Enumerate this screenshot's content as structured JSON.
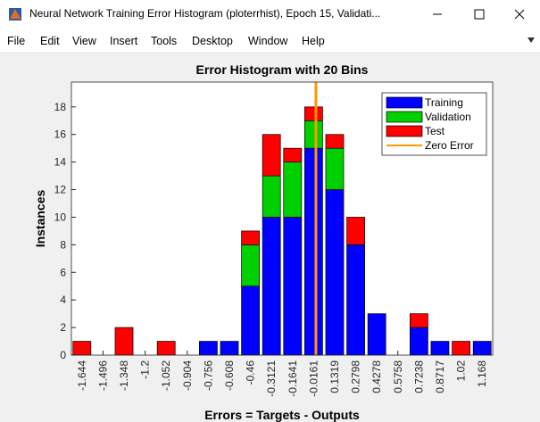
{
  "window_title": "Neural Network Training Error Histogram (ploterrhist), Epoch 15, Validati...",
  "menu": [
    "File",
    "Edit",
    "View",
    "Insert",
    "Tools",
    "Desktop",
    "Window",
    "Help"
  ],
  "chart_data": {
    "type": "histogram",
    "title": "Error Histogram with 20 Bins",
    "xlabel": "Errors = Targets - Outputs",
    "ylabel": "Instances",
    "x": [
      -1.644,
      -1.496,
      -1.348,
      -1.2,
      -1.052,
      -0.904,
      -0.756,
      -0.608,
      -0.46,
      -0.3121,
      -0.1641,
      -0.0161,
      0.1319,
      0.2798,
      0.4278,
      0.5758,
      0.7238,
      0.8717,
      1.02,
      1.168
    ],
    "series": [
      {
        "name": "Training",
        "color": "#0000ff",
        "values": [
          0,
          0,
          0,
          0,
          0,
          0,
          1,
          1,
          5,
          10,
          10,
          15,
          12,
          8,
          3,
          0,
          2,
          1,
          0,
          1
        ]
      },
      {
        "name": "Validation",
        "color": "#00d000",
        "values": [
          0,
          0,
          0,
          0,
          0,
          0,
          0,
          0,
          3,
          3,
          4,
          2,
          3,
          0,
          0,
          0,
          0,
          0,
          0,
          0
        ]
      },
      {
        "name": "Test",
        "color": "#ff0000",
        "values": [
          1,
          0,
          2,
          0,
          1,
          0,
          0,
          0,
          1,
          3,
          1,
          1,
          1,
          2,
          0,
          0,
          1,
          0,
          1,
          0
        ]
      }
    ],
    "reference_line": {
      "name": "Zero Error",
      "color": "#ff9900",
      "x": 0
    },
    "xlim": [
      -1.718,
      1.242
    ],
    "ylim": [
      0,
      19.8
    ],
    "yticks": [
      0,
      2,
      4,
      6,
      8,
      10,
      12,
      14,
      16,
      18
    ],
    "legend": "upper right"
  }
}
